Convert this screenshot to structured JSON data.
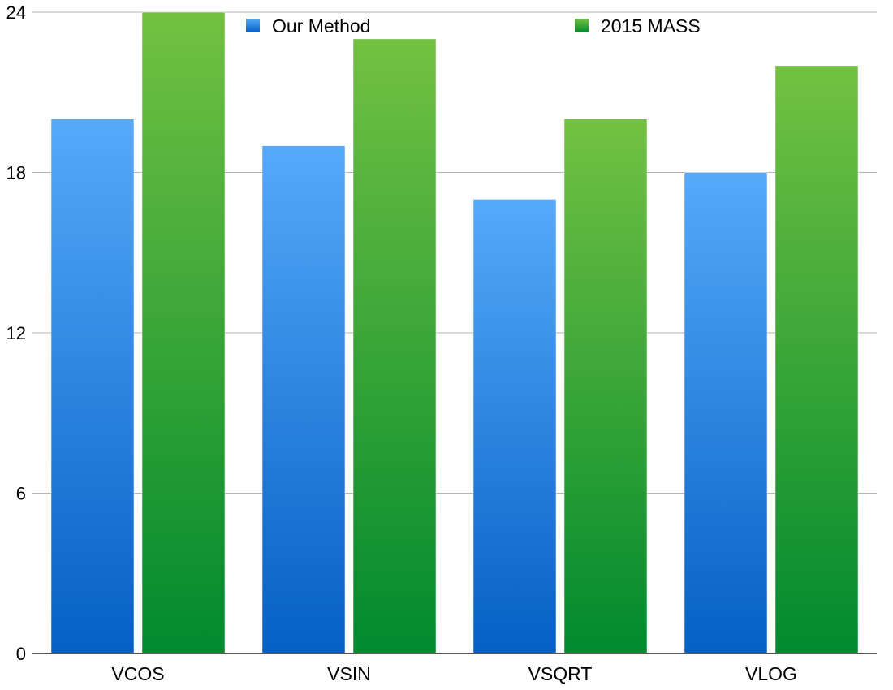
{
  "chart_data": {
    "type": "bar",
    "categories": [
      "VCOS",
      "VSIN",
      "VSQRT",
      "VLOG"
    ],
    "series": [
      {
        "name": "Our Method",
        "values": [
          20,
          19,
          17,
          18
        ],
        "color": "#1f7ad6"
      },
      {
        "name": "2015 MASS",
        "values": [
          24,
          23,
          20,
          22
        ],
        "color": "#3aa33a"
      }
    ],
    "title": "",
    "xlabel": "",
    "ylabel": "",
    "ylim": [
      0,
      24
    ],
    "yticks": [
      0,
      6,
      12,
      18,
      24
    ],
    "grid": true,
    "legend": "top"
  }
}
